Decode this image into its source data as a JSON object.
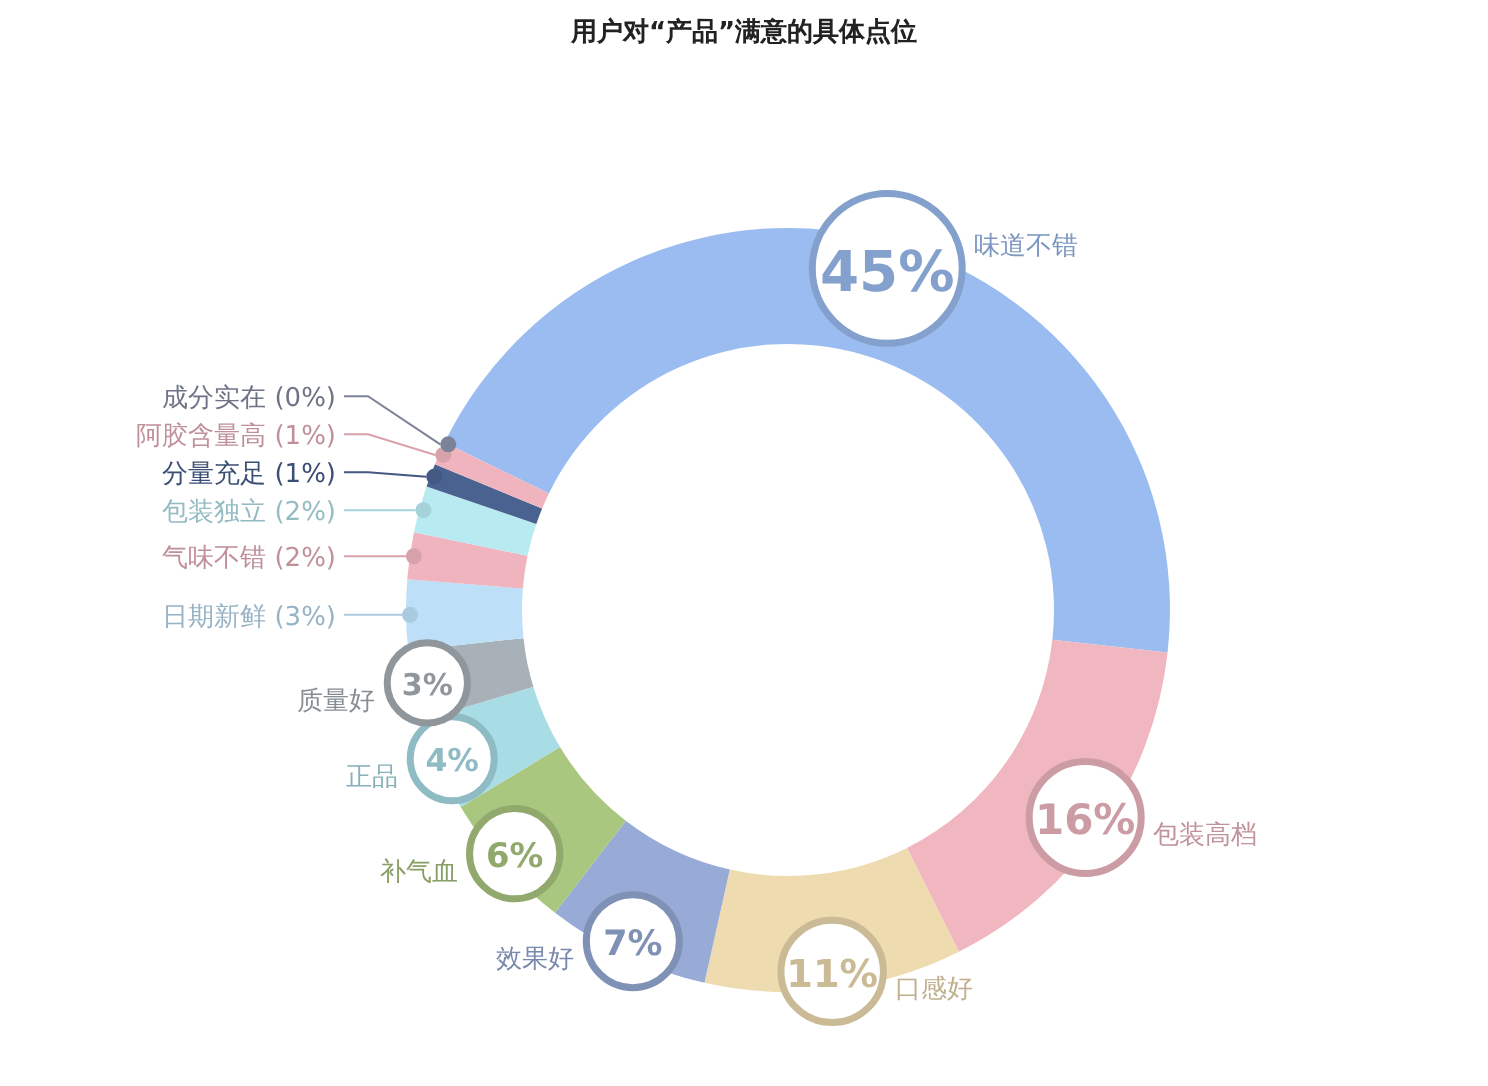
{
  "chart_data": {
    "type": "donut",
    "title": "用户对“产品”满意的具体点位",
    "categories": [
      "味道不错",
      "包装高档",
      "口感好",
      "效果好",
      "补气血",
      "正品",
      "质量好",
      "日期新鲜",
      "气味不错",
      "包装独立",
      "分量充足",
      "阿胶含量高",
      "成分实在"
    ],
    "values": [
      45,
      16,
      11,
      7,
      6,
      4,
      3,
      3,
      2,
      2,
      1,
      1,
      0
    ],
    "colors": [
      "#9bbcf0",
      "#f0b7c1",
      "#efdbb0",
      "#97abd6",
      "#aac77f",
      "#a8dde6",
      "#a8b0b8",
      "#bde0f8",
      "#f0b4be",
      "#b8eaf2",
      "#4a6290",
      "#f0b4be",
      "#8a90a8"
    ],
    "value_labels": [
      "45%",
      "16%",
      "11%",
      "7%",
      "6%",
      "4%",
      "3%",
      "(3%)",
      "(2%)",
      "(2%)",
      "(1%)",
      "(1%)",
      "(0%)"
    ]
  }
}
